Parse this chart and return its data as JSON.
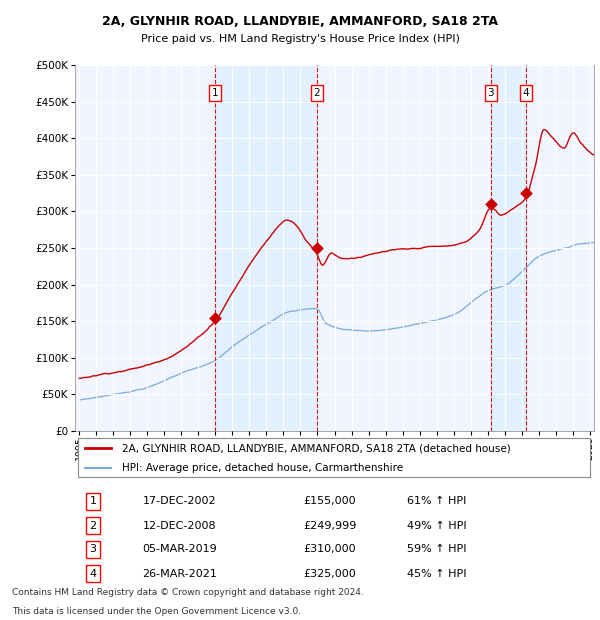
{
  "title1": "2A, GLYNHIR ROAD, LLANDYBIE, AMMANFORD, SA18 2TA",
  "title2": "Price paid vs. HM Land Registry's House Price Index (HPI)",
  "legend_line1": "2A, GLYNHIR ROAD, LLANDYBIE, AMMANFORD, SA18 2TA (detached house)",
  "legend_line2": "HPI: Average price, detached house, Carmarthenshire",
  "footer1": "Contains HM Land Registry data © Crown copyright and database right 2024.",
  "footer2": "This data is licensed under the Open Government Licence v3.0.",
  "transactions": [
    {
      "num": 1,
      "date": "17-DEC-2002",
      "price": "£155,000",
      "pct": "61% ↑ HPI",
      "year": 2002.96
    },
    {
      "num": 2,
      "date": "12-DEC-2008",
      "price": "£249,999",
      "pct": "49% ↑ HPI",
      "year": 2008.96
    },
    {
      "num": 3,
      "date": "05-MAR-2019",
      "price": "£310,000",
      "pct": "59% ↑ HPI",
      "year": 2019.18
    },
    {
      "num": 4,
      "date": "26-MAR-2021",
      "price": "£325,000",
      "pct": "45% ↑ HPI",
      "year": 2021.23
    }
  ],
  "hpi_color": "#7aaadd",
  "price_color": "#cc0000",
  "vline_color": "#cc0000",
  "shade_color": "#ddeeff",
  "background_color": "#f0f5ff",
  "ylim": [
    0,
    500000
  ],
  "yticks": [
    0,
    50000,
    100000,
    150000,
    200000,
    250000,
    300000,
    350000,
    400000,
    450000,
    500000
  ],
  "xlim": [
    1994.75,
    2025.25
  ]
}
